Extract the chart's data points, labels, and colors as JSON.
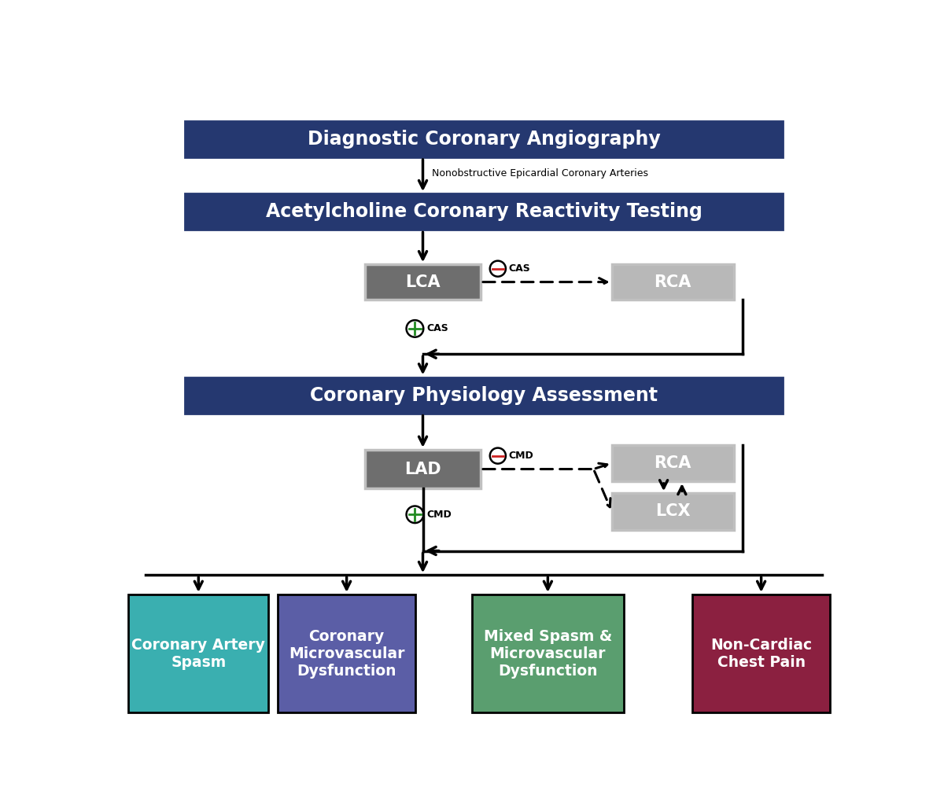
{
  "fig_width": 12.0,
  "fig_height": 10.25,
  "bg_color": "#ffffff",
  "dark_blue": "#253870",
  "med_gray": "#6e6e6e",
  "light_gray": "#b8b8b8",
  "teal": "#3aafb0",
  "purple": "#5b5ea6",
  "green": "#5a9e6f",
  "dark_red": "#8b2040",
  "box1_text": "Diagnostic Coronary Angiography",
  "box2_text": "Acetylcholine Coronary Reactivity Testing",
  "box3_text": "Coronary Physiology Assessment",
  "label_neca": "Nonobstructive Epicardial Coronary Arteries",
  "lca_text": "LCA",
  "rca_text": "RCA",
  "lad_text": "LAD",
  "rca2_text": "RCA",
  "lcx_text": "LCX",
  "cas_neg_label": "CAS",
  "cas_pos_label": "CAS",
  "cmd_neg_label": "CMD",
  "cmd_pos_label": "CMD",
  "outcome1": "Coronary Artery\nSpasm",
  "outcome2": "Coronary\nMicrovascular\nDysfunction",
  "outcome3": "Mixed Spasm &\nMicrovascular\nDysfunction",
  "outcome4": "Non-Cardiac\nChest Pain"
}
